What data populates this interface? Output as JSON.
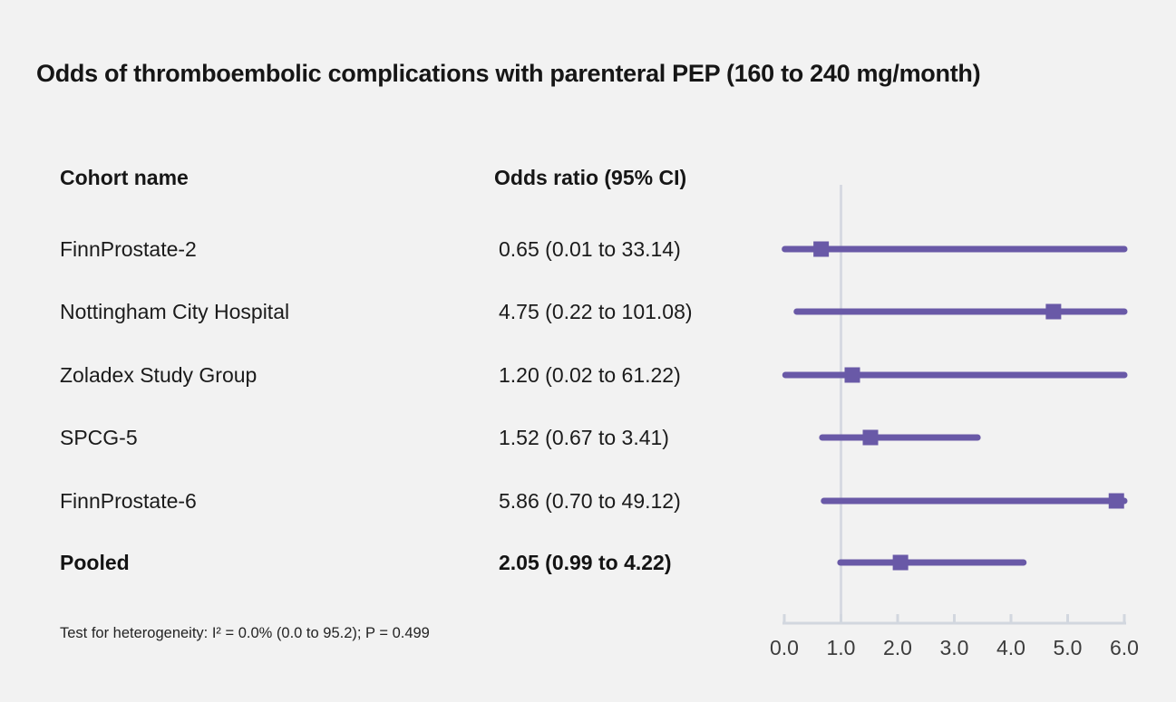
{
  "title": "Odds of thromboembolic complications with parenteral PEP (160 to 240 mg/month)",
  "columns": {
    "cohort_header": "Cohort name",
    "odds_header": "Odds ratio (95% CI)"
  },
  "footnote": "Test for heterogeneity: I² = 0.0% (0.0 to 95.2); P = 0.499",
  "colors": {
    "marker": "#6959A7",
    "ci_line": "#6959A7",
    "reference_line": "#d7dae2",
    "axis": "#d2d7df",
    "text": "#1b1b1b",
    "background": "#f2f2f2"
  },
  "chart_data": {
    "type": "scatter",
    "subtype": "forest-plot",
    "title": "Odds of thromboembolic complications with parenteral PEP (160 to 240 mg/month)",
    "xlabel": "Odds ratio",
    "xlim": [
      0.0,
      6.0
    ],
    "x_tick_labels": [
      "0.0",
      "1.0",
      "2.0",
      "3.0",
      "4.0",
      "5.0",
      "6.0"
    ],
    "x_tick_values": [
      0,
      1,
      2,
      3,
      4,
      5,
      6
    ],
    "reference_line_x": 1.0,
    "grid": false,
    "legend": "none",
    "rows": [
      {
        "name": "FinnProstate-2",
        "label": "0.65 (0.01 to 33.14)",
        "estimate": 0.65,
        "ci_low": 0.01,
        "ci_high": 33.14,
        "bold": false
      },
      {
        "name": "Nottingham City Hospital",
        "label": "4.75 (0.22 to 101.08)",
        "estimate": 4.75,
        "ci_low": 0.22,
        "ci_high": 101.08,
        "bold": false
      },
      {
        "name": "Zoladex Study Group",
        "label": "1.20 (0.02 to 61.22)",
        "estimate": 1.2,
        "ci_low": 0.02,
        "ci_high": 61.22,
        "bold": false
      },
      {
        "name": "SPCG-5",
        "label": "1.52 (0.67 to 3.41)",
        "estimate": 1.52,
        "ci_low": 0.67,
        "ci_high": 3.41,
        "bold": false
      },
      {
        "name": "FinnProstate-6",
        "label": "5.86 (0.70 to 49.12)",
        "estimate": 5.86,
        "ci_low": 0.7,
        "ci_high": 49.12,
        "bold": false
      },
      {
        "name": "Pooled",
        "label": "2.05 (0.99 to 4.22)",
        "estimate": 2.05,
        "ci_low": 0.99,
        "ci_high": 4.22,
        "bold": true
      }
    ]
  }
}
